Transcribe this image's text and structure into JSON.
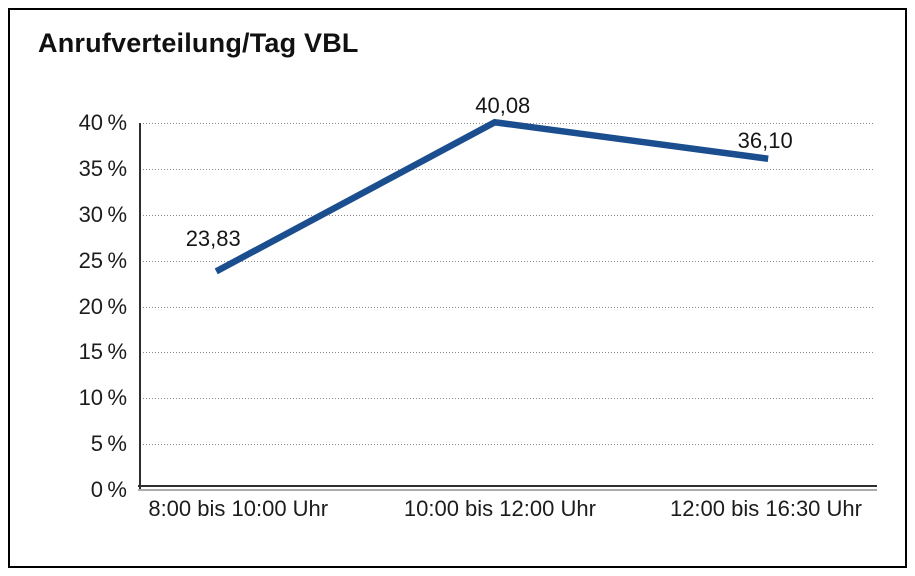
{
  "chart_data": {
    "type": "line",
    "title": "Anrufverteilung/Tag VBL",
    "categories": [
      "8:00 bis 10:00 Uhr",
      "10:00 bis 12:00 Uhr",
      "12:00 bis 16:30 Uhr"
    ],
    "values": [
      23.83,
      40.08,
      36.1
    ],
    "point_labels": [
      "23,83",
      "40,08",
      "36,10"
    ],
    "unit": "%",
    "xlabel": "",
    "ylabel": "",
    "ylim": [
      0,
      40
    ],
    "ytick_step": 5,
    "ytick_labels": [
      "0 %",
      "5 %",
      "10 %",
      "15 %",
      "20 %",
      "25 %",
      "30 %",
      "35 %",
      "40 %"
    ],
    "grid": "horizontal-dotted",
    "legend": "none",
    "line_color": "#1b4e8f",
    "axis_color": "#2e2e2e",
    "grid_color": "#8a8a8a",
    "text_color": "#1c1c1c",
    "background": "#ffffff",
    "border_color": "#000000"
  }
}
